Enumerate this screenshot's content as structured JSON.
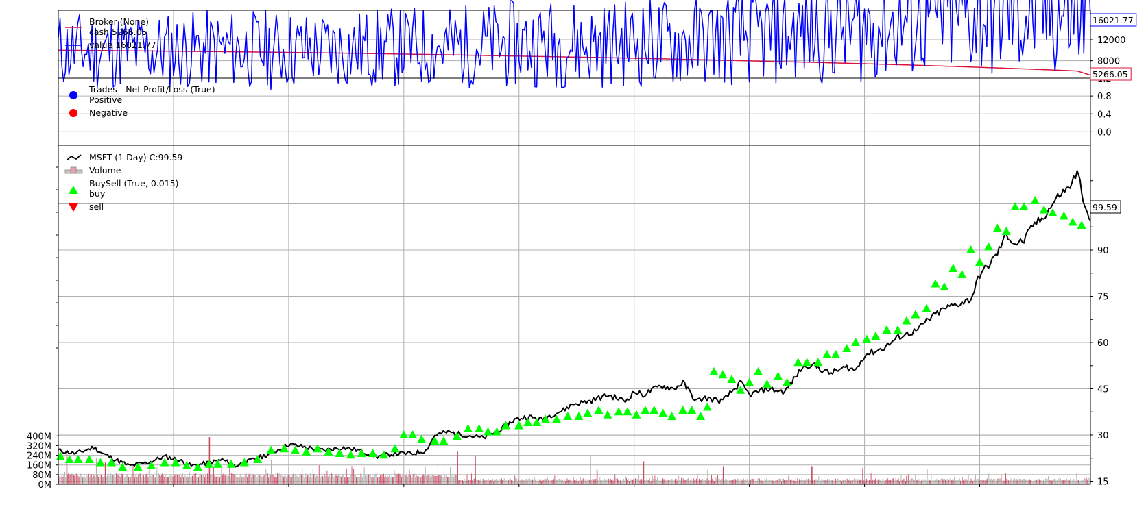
{
  "chart_data": [
    {
      "type": "line",
      "panel": "broker",
      "legend": [
        "Broker (None)",
        "cash 5266.05",
        "value 16021.77"
      ],
      "legend_placement": "top-left",
      "grid": true,
      "yticks": [
        8000,
        12000
      ],
      "yticklabels": [
        "8000",
        "12000"
      ],
      "ylim": [
        4700,
        17600
      ],
      "series": [
        {
          "name": "cash",
          "color": "#dc143c",
          "last_label": "5266.05",
          "x": [
            0,
            100,
            200,
            300,
            400,
            500,
            600,
            700,
            800,
            900,
            1000,
            1100,
            1200,
            1300,
            1400,
            1500,
            1600,
            1700,
            1800,
            1900,
            2000,
            2100,
            2200,
            2300,
            2330
          ],
          "y": [
            10000,
            9940,
            9860,
            9780,
            9700,
            9600,
            9500,
            9380,
            9240,
            9100,
            8950,
            8800,
            8650,
            8480,
            8300,
            8100,
            7900,
            7700,
            7480,
            7240,
            6980,
            6700,
            6400,
            6060,
            5266.05
          ]
        },
        {
          "name": "value",
          "color": "#0000ff",
          "last_label": "16021.77",
          "x": [
            0,
            100,
            200,
            300,
            400,
            500,
            600,
            700,
            800,
            900,
            1000,
            1100,
            1200,
            1300,
            1400,
            1500,
            1600,
            1700,
            1800,
            1900,
            2000,
            2100,
            2150,
            2200,
            2250,
            2300,
            2330
          ],
          "y": [
            10000,
            9900,
            9920,
            10050,
            10200,
            10050,
            10150,
            10300,
            10600,
            10800,
            11100,
            11350,
            11050,
            11600,
            11400,
            12300,
            12800,
            13400,
            14200,
            15100,
            16200,
            17000,
            17300,
            16800,
            17400,
            16900,
            16021.77
          ]
        }
      ]
    },
    {
      "type": "scatter",
      "panel": "trades",
      "legend": [
        "Trades - Net Profit/Loss (True)",
        "Positive",
        "Negative"
      ],
      "legend_placement": "top-left",
      "grid": true,
      "yticks": [
        0.0,
        0.4,
        0.8,
        1.2
      ],
      "yticklabels": [
        "0.0",
        "0.4",
        "0.8",
        "1.2"
      ],
      "ylim": [
        -0.3,
        1.2
      ],
      "series": [
        {
          "name": "Positive",
          "color": "#0000ff",
          "x": [],
          "y": []
        },
        {
          "name": "Negative",
          "color": "#ff0000",
          "x": [],
          "y": []
        }
      ]
    },
    {
      "type": "line",
      "panel": "price",
      "legend": [
        "MSFT (1 Day) C:99.59",
        "Volume",
        "BuySell (True, 0.015)",
        "buy",
        "sell"
      ],
      "legend_placement": "top-left",
      "grid": true,
      "yticks": [
        15,
        30,
        45,
        60,
        75,
        90,
        105
      ],
      "yticklabels": [
        "15",
        "30",
        "45",
        "60",
        "75",
        "90",
        "105"
      ],
      "ylim": [
        14,
        124
      ],
      "last_label": "99.59",
      "close": {
        "name": "MSFT (1 Day) C:99.59",
        "color": "#000000",
        "x": [
          0,
          40,
          80,
          100,
          130,
          160,
          200,
          240,
          270,
          300,
          340,
          370,
          400,
          440,
          480,
          520,
          560,
          600,
          640,
          680,
          720,
          760,
          800,
          830,
          850,
          880,
          920,
          960,
          1000,
          1030,
          1060,
          1090,
          1120,
          1140,
          1160,
          1200,
          1240,
          1280,
          1300,
          1320,
          1360,
          1390,
          1410,
          1440,
          1460,
          1500,
          1540,
          1560,
          1600,
          1640,
          1680,
          1700,
          1740,
          1780,
          1800,
          1820,
          1840,
          1860,
          1880,
          1900,
          1920,
          1940,
          1960,
          1980,
          2000,
          2020,
          2040,
          2060,
          2080,
          2100,
          2120,
          2140,
          2160,
          2180,
          2200,
          2220,
          2240,
          2260,
          2280,
          2300,
          2310,
          2320,
          2330
        ],
        "y": [
          25,
          24,
          26,
          24,
          22,
          20,
          21,
          23,
          22,
          20,
          21,
          22,
          20,
          22,
          24,
          27,
          26,
          25,
          26,
          25,
          23,
          24,
          24,
          25,
          30,
          31,
          30,
          29,
          32,
          35,
          36,
          35,
          37,
          38,
          40,
          41,
          43,
          41,
          44,
          43,
          46,
          45,
          47,
          41,
          42,
          41,
          47,
          43,
          45,
          44,
          52,
          53,
          50,
          52,
          51,
          56,
          57,
          58,
          60,
          62,
          63,
          64,
          67,
          69,
          71,
          72,
          73,
          74,
          82,
          85,
          89,
          95,
          92,
          93,
          98,
          100,
          104,
          108,
          110,
          115,
          110,
          102,
          99.59
        ]
      },
      "buy": {
        "name": "buy",
        "color": "#00ff00",
        "x": [
          5,
          25,
          45,
          70,
          95,
          120,
          145,
          180,
          210,
          240,
          265,
          290,
          315,
          340,
          360,
          390,
          420,
          450,
          480,
          510,
          535,
          560,
          585,
          610,
          635,
          660,
          685,
          710,
          735,
          760,
          780,
          800,
          820,
          850,
          870,
          900,
          925,
          950,
          970,
          990,
          1010,
          1040,
          1060,
          1080,
          1100,
          1125,
          1150,
          1175,
          1195,
          1220,
          1240,
          1265,
          1285,
          1305,
          1325,
          1345,
          1365,
          1385,
          1410,
          1430,
          1450,
          1465,
          1480,
          1500,
          1520,
          1540,
          1560,
          1580,
          1600,
          1625,
          1645,
          1670,
          1690,
          1715,
          1735,
          1755,
          1780,
          1800,
          1825,
          1845,
          1870,
          1895,
          1915,
          1935,
          1960,
          1980,
          2000,
          2020,
          2040,
          2060,
          2080,
          2100,
          2120,
          2140,
          2160,
          2180,
          2205,
          2225,
          2245,
          2270,
          2290,
          2310
        ],
        "y": [
          23,
          22,
          22,
          22,
          21,
          21,
          19.5,
          19.5,
          20,
          21,
          21,
          20,
          19.5,
          20.5,
          20.5,
          20.5,
          21,
          22,
          25,
          25.5,
          25,
          24.5,
          25.5,
          24.5,
          24,
          23.5,
          24,
          24,
          23.5,
          25.5,
          30,
          30,
          28.5,
          28,
          28,
          29.5,
          32,
          32,
          31,
          31,
          33,
          33,
          34,
          34,
          35,
          35,
          36,
          36,
          37,
          38,
          36.5,
          37.5,
          37.5,
          36.5,
          38,
          38,
          37,
          36,
          38,
          38,
          36,
          39,
          50.5,
          49.5,
          48,
          44.5,
          47,
          50.5,
          46.5,
          49,
          47,
          53.5,
          53.5,
          53.5,
          56,
          56,
          58,
          60,
          61,
          62,
          64,
          64,
          67,
          69,
          71,
          79,
          78,
          84,
          82,
          90,
          86,
          91,
          97,
          96,
          104,
          104,
          106,
          103,
          102,
          101,
          99,
          98
        ],
        "marker": "triangle-up"
      },
      "sell": {
        "name": "sell",
        "color": "#ff0000",
        "marker": "triangle-down",
        "x": [],
        "y": []
      }
    },
    {
      "type": "bar",
      "panel": "volume",
      "name": "Volume",
      "overlay_of": "price",
      "yticks": [
        0,
        80000000,
        160000000,
        240000000,
        320000000,
        400000000
      ],
      "yticklabels": [
        "0M",
        "80M",
        "160M",
        "240M",
        "320M",
        "400M"
      ],
      "ylim": [
        0,
        2800000000
      ],
      "colors": {
        "up": "#b0b0b0",
        "down": "#c84c61"
      },
      "spikes_x": [
        18,
        85,
        105,
        340,
        480,
        900,
        940,
        1200,
        1215,
        1320,
        1465,
        1500,
        1700,
        1960,
        1815
      ],
      "spikes_y": [
        250000000,
        220000000,
        180000000,
        390000000,
        200000000,
        270000000,
        240000000,
        230000000,
        120000000,
        190000000,
        120000000,
        150000000,
        150000000,
        130000000,
        135000000
      ]
    }
  ],
  "xaxis": {
    "n_bars": 2330,
    "grid_every": 260,
    "xticklabels": []
  }
}
